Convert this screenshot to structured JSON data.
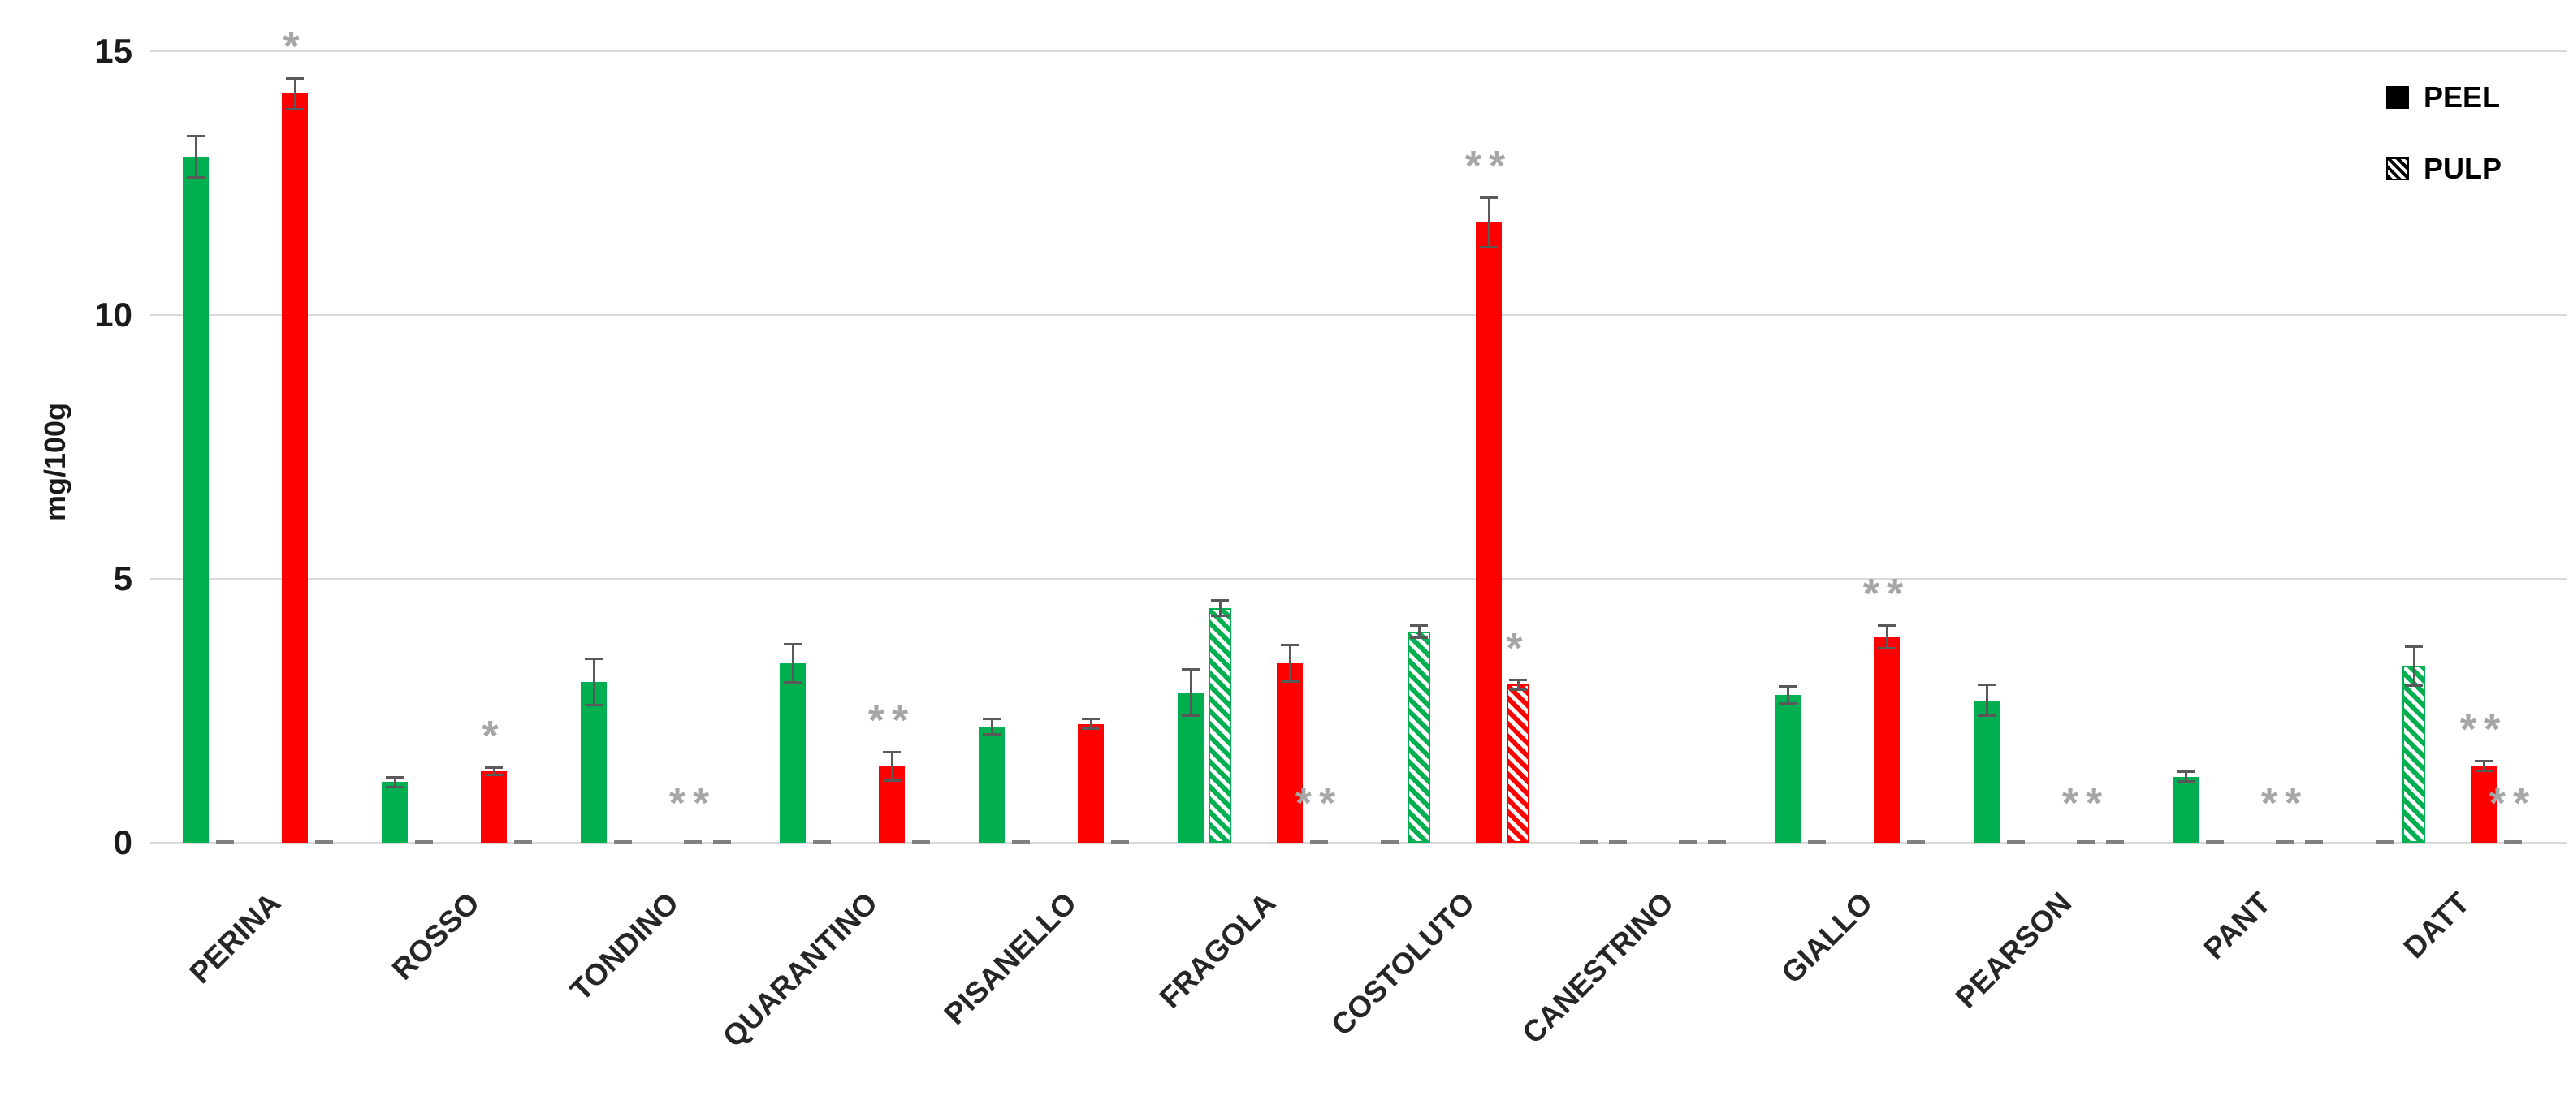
{
  "y_axis": {
    "label": "mg/100g",
    "ticks": [
      0,
      5,
      10,
      15
    ],
    "max": 15
  },
  "legend": {
    "items": [
      {
        "label": "PEEL",
        "pattern": "solid"
      },
      {
        "label": "PULP",
        "pattern": "hatched"
      }
    ]
  },
  "chart_data": {
    "type": "bar",
    "title": "",
    "xlabel": "",
    "ylabel": "mg/100g",
    "ylim": [
      0,
      15
    ],
    "yticks": [
      0,
      5,
      10,
      15
    ],
    "grid": "horizontal",
    "legend_position": "top-right",
    "legend_entries": [
      "PEEL",
      "PULP"
    ],
    "significance_markers": "asterisks above bars",
    "categories": [
      "PERINA",
      "ROSSO",
      "TONDINO",
      "QUARANTINO",
      "PISANELLO",
      "FRAGOLA",
      "COSTOLUTO",
      "CANESTRINO",
      "GIALLO",
      "PEARSON",
      "PANT",
      "DATT"
    ],
    "series": [
      {
        "name": "GREEN PEEL",
        "color": "#00b050",
        "pattern": "solid",
        "values": [
          13.0,
          1.15,
          3.05,
          3.4,
          2.2,
          2.85,
          0,
          0,
          2.8,
          2.7,
          1.25,
          0
        ],
        "errors": [
          0.4,
          0.1,
          0.45,
          0.37,
          0.15,
          0.45,
          0,
          0,
          0.17,
          0.3,
          0.1,
          0
        ],
        "markers": [
          "",
          "",
          "",
          "",
          "",
          "",
          "",
          "",
          "",
          "",
          "",
          ""
        ]
      },
      {
        "name": "GREEN PULP",
        "color": "#00b050",
        "pattern": "hatched",
        "values": [
          0,
          0,
          0,
          0,
          0,
          4.45,
          4.0,
          0,
          0,
          0,
          0,
          3.35
        ],
        "errors": [
          0,
          0,
          0,
          0,
          0,
          0.15,
          0.12,
          0,
          0,
          0,
          0,
          0.38
        ],
        "markers": [
          "",
          "",
          "",
          "",
          "",
          "",
          "",
          "",
          "",
          "",
          "",
          ""
        ]
      },
      {
        "name": "RED PEEL",
        "color": "#ff0000",
        "pattern": "solid",
        "values": [
          14.2,
          1.35,
          0,
          1.45,
          2.25,
          3.4,
          11.75,
          0,
          3.9,
          0,
          0,
          1.45
        ],
        "errors": [
          0.3,
          0.08,
          0,
          0.28,
          0.1,
          0.35,
          0.48,
          0,
          0.23,
          0,
          0,
          0.1
        ],
        "markers": [
          "*",
          "*",
          "**",
          "**",
          "",
          "",
          "**",
          "",
          "**",
          "**",
          "**",
          "**"
        ]
      },
      {
        "name": "RED PULP",
        "color": "#ff0000",
        "pattern": "hatched",
        "values": [
          0,
          0,
          0,
          0,
          0,
          0,
          3.0,
          0,
          0,
          0,
          0,
          0
        ],
        "errors": [
          0,
          0,
          0,
          0,
          0,
          0,
          0.1,
          0,
          0,
          0,
          0,
          0
        ],
        "markers": [
          "",
          "",
          "",
          "",
          "",
          "**",
          "*",
          "",
          "",
          "",
          "",
          "**"
        ]
      }
    ],
    "colors": {
      "green": "#00b050",
      "red": "#ff0000",
      "error_bar": "#595959",
      "marker": "#a6a6a6",
      "gridline": "#d9d9d9",
      "zero_dash": "#808080"
    }
  }
}
